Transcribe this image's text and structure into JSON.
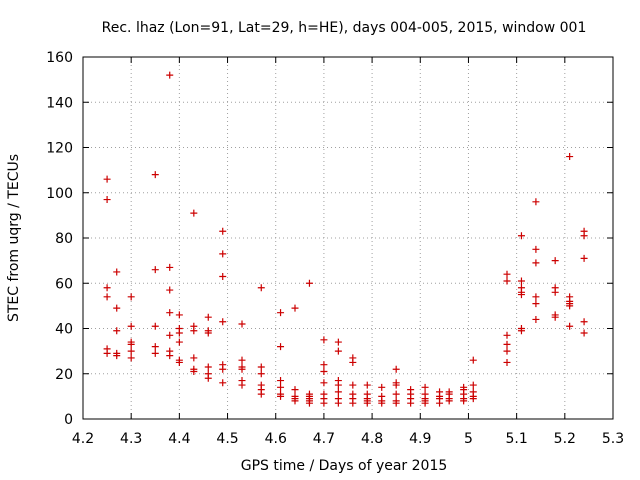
{
  "chart_data": {
    "type": "scatter",
    "title": "Rec. lhaz (Lon=91, Lat=29, h=HE), days 004-005, 2015, window 001",
    "xlabel": "GPS time / Days of year 2015",
    "ylabel": "STEC from uqrg / TECUs",
    "xlim": [
      4.2,
      5.3
    ],
    "ylim": [
      0,
      160
    ],
    "xticks": [
      4.2,
      4.3,
      4.4,
      4.5,
      4.6,
      4.7,
      4.8,
      4.9,
      5.0,
      5.1,
      5.2,
      5.3
    ],
    "xtick_labels": [
      "4.2",
      "4.3",
      "4.4",
      "4.5",
      "4.6",
      "4.7",
      "4.8",
      "4.9",
      "5",
      "5.1",
      "5.2",
      "5.3"
    ],
    "yticks": [
      0,
      20,
      40,
      60,
      80,
      100,
      120,
      140,
      160
    ],
    "yticks_labels": [
      "0",
      "20",
      "40",
      "60",
      "80",
      "100",
      "120",
      "140",
      "160"
    ],
    "grid": true,
    "marker": "plus",
    "color": "#cc0000",
    "points": [
      [
        4.25,
        106
      ],
      [
        4.25,
        97
      ],
      [
        4.25,
        58
      ],
      [
        4.25,
        54
      ],
      [
        4.25,
        31
      ],
      [
        4.25,
        29
      ],
      [
        4.27,
        65
      ],
      [
        4.27,
        49
      ],
      [
        4.27,
        39
      ],
      [
        4.27,
        29
      ],
      [
        4.27,
        28
      ],
      [
        4.3,
        54
      ],
      [
        4.3,
        41
      ],
      [
        4.3,
        34
      ],
      [
        4.3,
        33
      ],
      [
        4.3,
        30
      ],
      [
        4.3,
        27
      ],
      [
        4.35,
        108
      ],
      [
        4.35,
        66
      ],
      [
        4.35,
        41
      ],
      [
        4.35,
        32
      ],
      [
        4.35,
        29
      ],
      [
        4.38,
        152
      ],
      [
        4.38,
        67
      ],
      [
        4.38,
        57
      ],
      [
        4.38,
        47
      ],
      [
        4.38,
        37
      ],
      [
        4.38,
        30
      ],
      [
        4.38,
        28
      ],
      [
        4.4,
        46
      ],
      [
        4.4,
        40
      ],
      [
        4.4,
        38
      ],
      [
        4.4,
        34
      ],
      [
        4.4,
        26
      ],
      [
        4.4,
        25
      ],
      [
        4.43,
        91
      ],
      [
        4.43,
        41
      ],
      [
        4.43,
        39
      ],
      [
        4.43,
        27
      ],
      [
        4.43,
        22
      ],
      [
        4.43,
        21
      ],
      [
        4.46,
        45
      ],
      [
        4.46,
        39
      ],
      [
        4.46,
        38
      ],
      [
        4.46,
        23
      ],
      [
        4.46,
        20
      ],
      [
        4.46,
        18
      ],
      [
        4.49,
        83
      ],
      [
        4.49,
        73
      ],
      [
        4.49,
        63
      ],
      [
        4.49,
        43
      ],
      [
        4.49,
        24
      ],
      [
        4.49,
        22
      ],
      [
        4.49,
        16
      ],
      [
        4.53,
        42
      ],
      [
        4.53,
        26
      ],
      [
        4.53,
        23
      ],
      [
        4.53,
        22
      ],
      [
        4.53,
        17
      ],
      [
        4.53,
        15
      ],
      [
        4.57,
        58
      ],
      [
        4.57,
        23
      ],
      [
        4.57,
        20
      ],
      [
        4.57,
        15
      ],
      [
        4.57,
        13
      ],
      [
        4.57,
        11
      ],
      [
        4.61,
        47
      ],
      [
        4.61,
        32
      ],
      [
        4.61,
        17
      ],
      [
        4.61,
        14
      ],
      [
        4.61,
        11
      ],
      [
        4.61,
        10
      ],
      [
        4.64,
        49
      ],
      [
        4.64,
        13
      ],
      [
        4.64,
        10
      ],
      [
        4.64,
        9
      ],
      [
        4.64,
        8
      ],
      [
        4.67,
        60
      ],
      [
        4.67,
        11
      ],
      [
        4.67,
        10
      ],
      [
        4.67,
        9
      ],
      [
        4.67,
        8
      ],
      [
        4.67,
        7
      ],
      [
        4.7,
        35
      ],
      [
        4.7,
        24
      ],
      [
        4.7,
        21
      ],
      [
        4.7,
        16
      ],
      [
        4.7,
        11
      ],
      [
        4.7,
        9
      ],
      [
        4.7,
        7
      ],
      [
        4.73,
        34
      ],
      [
        4.73,
        30
      ],
      [
        4.73,
        17
      ],
      [
        4.73,
        15
      ],
      [
        4.73,
        12
      ],
      [
        4.73,
        9
      ],
      [
        4.73,
        7
      ],
      [
        4.76,
        27
      ],
      [
        4.76,
        25
      ],
      [
        4.76,
        15
      ],
      [
        4.76,
        11
      ],
      [
        4.76,
        9
      ],
      [
        4.76,
        7
      ],
      [
        4.79,
        15
      ],
      [
        4.79,
        11
      ],
      [
        4.79,
        9
      ],
      [
        4.79,
        8
      ],
      [
        4.79,
        7
      ],
      [
        4.82,
        14
      ],
      [
        4.82,
        10
      ],
      [
        4.82,
        8
      ],
      [
        4.82,
        7
      ],
      [
        4.85,
        22
      ],
      [
        4.85,
        16
      ],
      [
        4.85,
        15
      ],
      [
        4.85,
        11
      ],
      [
        4.85,
        8
      ],
      [
        4.85,
        7
      ],
      [
        4.88,
        13
      ],
      [
        4.88,
        11
      ],
      [
        4.88,
        9
      ],
      [
        4.88,
        7
      ],
      [
        4.91,
        14
      ],
      [
        4.91,
        11
      ],
      [
        4.91,
        9
      ],
      [
        4.91,
        8
      ],
      [
        4.91,
        7
      ],
      [
        4.94,
        12
      ],
      [
        4.94,
        10
      ],
      [
        4.94,
        9
      ],
      [
        4.94,
        7
      ],
      [
        4.96,
        12
      ],
      [
        4.96,
        11
      ],
      [
        4.96,
        9
      ],
      [
        4.96,
        8
      ],
      [
        4.99,
        14
      ],
      [
        4.99,
        13
      ],
      [
        4.99,
        11
      ],
      [
        4.99,
        9
      ],
      [
        4.99,
        8
      ],
      [
        5.01,
        26
      ],
      [
        5.01,
        15
      ],
      [
        5.01,
        12
      ],
      [
        5.01,
        10
      ],
      [
        5.01,
        9
      ],
      [
        5.08,
        64
      ],
      [
        5.08,
        61
      ],
      [
        5.08,
        37
      ],
      [
        5.08,
        33
      ],
      [
        5.08,
        30
      ],
      [
        5.08,
        25
      ],
      [
        5.11,
        81
      ],
      [
        5.11,
        61
      ],
      [
        5.11,
        58
      ],
      [
        5.11,
        56
      ],
      [
        5.11,
        55
      ],
      [
        5.11,
        40
      ],
      [
        5.11,
        39
      ],
      [
        5.14,
        96
      ],
      [
        5.14,
        75
      ],
      [
        5.14,
        69
      ],
      [
        5.14,
        54
      ],
      [
        5.14,
        51
      ],
      [
        5.14,
        44
      ],
      [
        5.18,
        70
      ],
      [
        5.18,
        58
      ],
      [
        5.18,
        56
      ],
      [
        5.18,
        46
      ],
      [
        5.18,
        45
      ],
      [
        5.21,
        116
      ],
      [
        5.21,
        54
      ],
      [
        5.21,
        52
      ],
      [
        5.21,
        51
      ],
      [
        5.21,
        50
      ],
      [
        5.21,
        41
      ],
      [
        5.24,
        83
      ],
      [
        5.24,
        81
      ],
      [
        5.24,
        71
      ],
      [
        5.24,
        43
      ],
      [
        5.24,
        38
      ]
    ]
  }
}
